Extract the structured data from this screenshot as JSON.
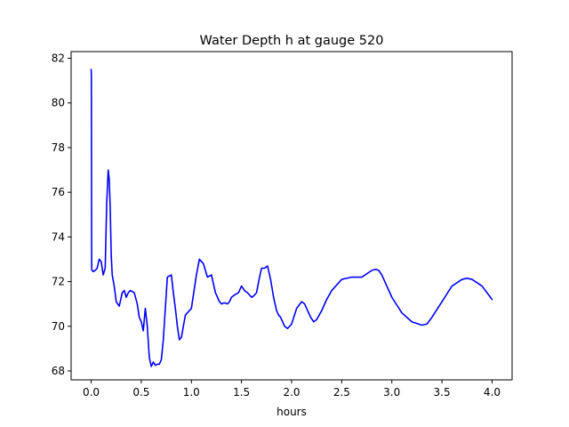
{
  "chart_data": {
    "type": "line",
    "title": "Water Depth h at gauge 520",
    "xlabel": "hours",
    "ylabel": "",
    "xlim": [
      -0.2,
      4.2
    ],
    "ylim": [
      67.6,
      82.3
    ],
    "xticks": [
      0.0,
      0.5,
      1.0,
      1.5,
      2.0,
      2.5,
      3.0,
      3.5,
      4.0
    ],
    "xtick_labels": [
      "0.0",
      "0.5",
      "1.0",
      "1.5",
      "2.0",
      "2.5",
      "3.0",
      "3.5",
      "4.0"
    ],
    "yticks": [
      68,
      70,
      72,
      74,
      76,
      78,
      80,
      82
    ],
    "ytick_labels": [
      "68",
      "70",
      "72",
      "74",
      "76",
      "78",
      "80",
      "82"
    ],
    "grid": false,
    "series": [
      {
        "color": "#0000ff",
        "x": [
          0.0,
          0.002,
          0.005,
          0.008,
          0.01,
          0.02,
          0.04,
          0.06,
          0.08,
          0.1,
          0.12,
          0.14,
          0.155,
          0.17,
          0.18,
          0.19,
          0.2,
          0.21,
          0.23,
          0.25,
          0.28,
          0.31,
          0.33,
          0.35,
          0.37,
          0.39,
          0.41,
          0.43,
          0.46,
          0.48,
          0.5,
          0.52,
          0.54,
          0.56,
          0.58,
          0.6,
          0.62,
          0.64,
          0.66,
          0.68,
          0.7,
          0.72,
          0.74,
          0.76,
          0.78,
          0.8,
          0.82,
          0.84,
          0.86,
          0.88,
          0.9,
          0.92,
          0.94,
          0.96,
          0.98,
          1.0,
          1.02,
          1.05,
          1.08,
          1.12,
          1.16,
          1.2,
          1.24,
          1.28,
          1.3,
          1.33,
          1.36,
          1.38,
          1.4,
          1.43,
          1.47,
          1.5,
          1.53,
          1.56,
          1.58,
          1.6,
          1.62,
          1.65,
          1.68,
          1.7,
          1.73,
          1.76,
          1.79,
          1.82,
          1.85,
          1.87,
          1.89,
          1.91,
          1.93,
          1.96,
          2.0,
          2.05,
          2.1,
          2.13,
          2.16,
          2.19,
          2.22,
          2.25,
          2.3,
          2.35,
          2.4,
          2.5,
          2.6,
          2.7,
          2.8,
          2.84,
          2.87,
          2.9,
          2.95,
          3.0,
          3.1,
          3.2,
          3.3,
          3.35,
          3.4,
          3.5,
          3.6,
          3.7,
          3.75,
          3.8,
          3.9,
          4.0
        ],
        "y": [
          81.5,
          81.2,
          72.6,
          72.5,
          72.5,
          72.45,
          72.5,
          72.6,
          73.0,
          72.9,
          72.3,
          72.6,
          75.5,
          77.0,
          76.6,
          75.3,
          73.2,
          72.3,
          71.8,
          71.1,
          70.9,
          71.5,
          71.6,
          71.3,
          71.5,
          71.6,
          71.55,
          71.5,
          71.0,
          70.4,
          70.2,
          69.8,
          70.8,
          70.0,
          68.6,
          68.2,
          68.4,
          68.25,
          68.3,
          68.3,
          68.5,
          69.4,
          70.8,
          72.2,
          72.25,
          72.3,
          71.5,
          70.8,
          70.0,
          69.4,
          69.5,
          70.0,
          70.5,
          70.6,
          70.7,
          70.8,
          71.4,
          72.3,
          73.0,
          72.8,
          72.2,
          72.3,
          71.5,
          71.1,
          71.0,
          71.05,
          71.0,
          71.1,
          71.3,
          71.4,
          71.5,
          71.8,
          71.6,
          71.5,
          71.4,
          71.3,
          71.35,
          71.5,
          72.2,
          72.6,
          72.6,
          72.7,
          72.1,
          71.3,
          70.7,
          70.5,
          70.4,
          70.2,
          70.0,
          69.9,
          70.1,
          70.8,
          71.1,
          71.0,
          70.7,
          70.4,
          70.2,
          70.3,
          70.7,
          71.2,
          71.6,
          72.1,
          72.2,
          72.2,
          72.5,
          72.55,
          72.5,
          72.3,
          71.8,
          71.3,
          70.6,
          70.2,
          70.05,
          70.1,
          70.4,
          71.1,
          71.8,
          72.1,
          72.15,
          72.1,
          71.8,
          71.2
        ]
      }
    ]
  }
}
